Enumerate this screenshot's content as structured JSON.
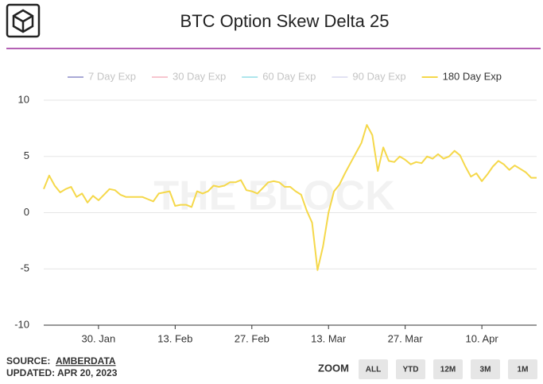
{
  "chart_data": {
    "type": "line",
    "title": "BTC Option Skew Delta 25",
    "x": [
      "20. Jan",
      "21. Jan",
      "22. Jan",
      "23. Jan",
      "24. Jan",
      "25. Jan",
      "26. Jan",
      "27. Jan",
      "28. Jan",
      "29. Jan",
      "30. Jan",
      "31. Jan",
      "1. Feb",
      "2. Feb",
      "3. Feb",
      "4. Feb",
      "5. Feb",
      "6. Feb",
      "7. Feb",
      "8. Feb",
      "9. Feb",
      "10. Feb",
      "11. Feb",
      "12. Feb",
      "13. Feb",
      "14. Feb",
      "15. Feb",
      "16. Feb",
      "17. Feb",
      "18. Feb",
      "19. Feb",
      "20. Feb",
      "21. Feb",
      "22. Feb",
      "23. Feb",
      "24. Feb",
      "25. Feb",
      "26. Feb",
      "27. Feb",
      "28. Feb",
      "1. Mar",
      "2. Mar",
      "3. Mar",
      "4. Mar",
      "5. Mar",
      "6. Mar",
      "7. Mar",
      "8. Mar",
      "9. Mar",
      "10. Mar",
      "11. Mar",
      "12. Mar",
      "13. Mar",
      "14. Mar",
      "15. Mar",
      "16. Mar",
      "17. Mar",
      "18. Mar",
      "19. Mar",
      "20. Mar",
      "21. Mar",
      "22. Mar",
      "23. Mar",
      "24. Mar",
      "25. Mar",
      "26. Mar",
      "27. Mar",
      "28. Mar",
      "29. Mar",
      "30. Mar",
      "31. Mar",
      "1. Apr",
      "2. Apr",
      "3. Apr",
      "4. Apr",
      "5. Apr",
      "6. Apr",
      "7. Apr",
      "8. Apr",
      "9. Apr",
      "10. Apr",
      "11. Apr",
      "12. Apr",
      "13. Apr",
      "14. Apr",
      "15. Apr",
      "16. Apr",
      "17. Apr",
      "18. Apr",
      "19. Apr",
      "20. Apr"
    ],
    "series": [
      {
        "name": "180 Day Exp",
        "color": "#f5d84a",
        "values": [
          2.1,
          3.3,
          2.4,
          1.8,
          2.1,
          2.3,
          1.4,
          1.7,
          0.9,
          1.5,
          1.1,
          1.6,
          2.1,
          2.0,
          1.6,
          1.4,
          1.4,
          1.4,
          1.4,
          1.2,
          1.0,
          1.7,
          1.8,
          1.9,
          0.6,
          0.7,
          0.7,
          0.5,
          1.9,
          1.7,
          1.9,
          2.4,
          2.3,
          2.4,
          2.7,
          2.7,
          2.9,
          2.0,
          1.9,
          1.7,
          2.2,
          2.7,
          2.8,
          2.7,
          2.3,
          2.3,
          1.9,
          1.6,
          0.2,
          -0.9,
          -5.1,
          -3.0,
          0.0,
          1.9,
          2.5,
          3.5,
          4.4,
          5.3,
          6.2,
          7.8,
          6.9,
          3.7,
          5.8,
          4.6,
          4.5,
          5.0,
          4.7,
          4.3,
          4.5,
          4.4,
          5.0,
          4.8,
          5.2,
          4.8,
          5.0,
          5.5,
          5.1,
          4.1,
          3.2,
          3.5,
          2.8,
          3.4,
          4.1,
          4.6,
          4.3,
          3.8,
          4.2,
          3.9,
          3.6,
          3.1,
          3.1
        ]
      }
    ],
    "hidden_series": [
      {
        "name": "7 Day Exp",
        "color": "#a9a9d6"
      },
      {
        "name": "30 Day Exp",
        "color": "#f7c6cf"
      },
      {
        "name": "60 Day Exp",
        "color": "#aee6ec"
      },
      {
        "name": "90 Day Exp",
        "color": "#e2e2f3"
      }
    ],
    "xticks": [
      "30. Jan",
      "13. Feb",
      "27. Feb",
      "13. Mar",
      "27. Mar",
      "10. Apr"
    ],
    "ylim": [
      -10,
      10
    ],
    "yticks": [
      10,
      5,
      0,
      -5,
      -10
    ],
    "grid": true
  },
  "watermark": "THE BLOCK",
  "source_label": "SOURCE:",
  "source": "AMBERDATA",
  "updated": "UPDATED: APR 20, 2023",
  "zoom_label": "ZOOM",
  "zoom_buttons": [
    "ALL",
    "YTD",
    "12M",
    "3M",
    "1M"
  ]
}
